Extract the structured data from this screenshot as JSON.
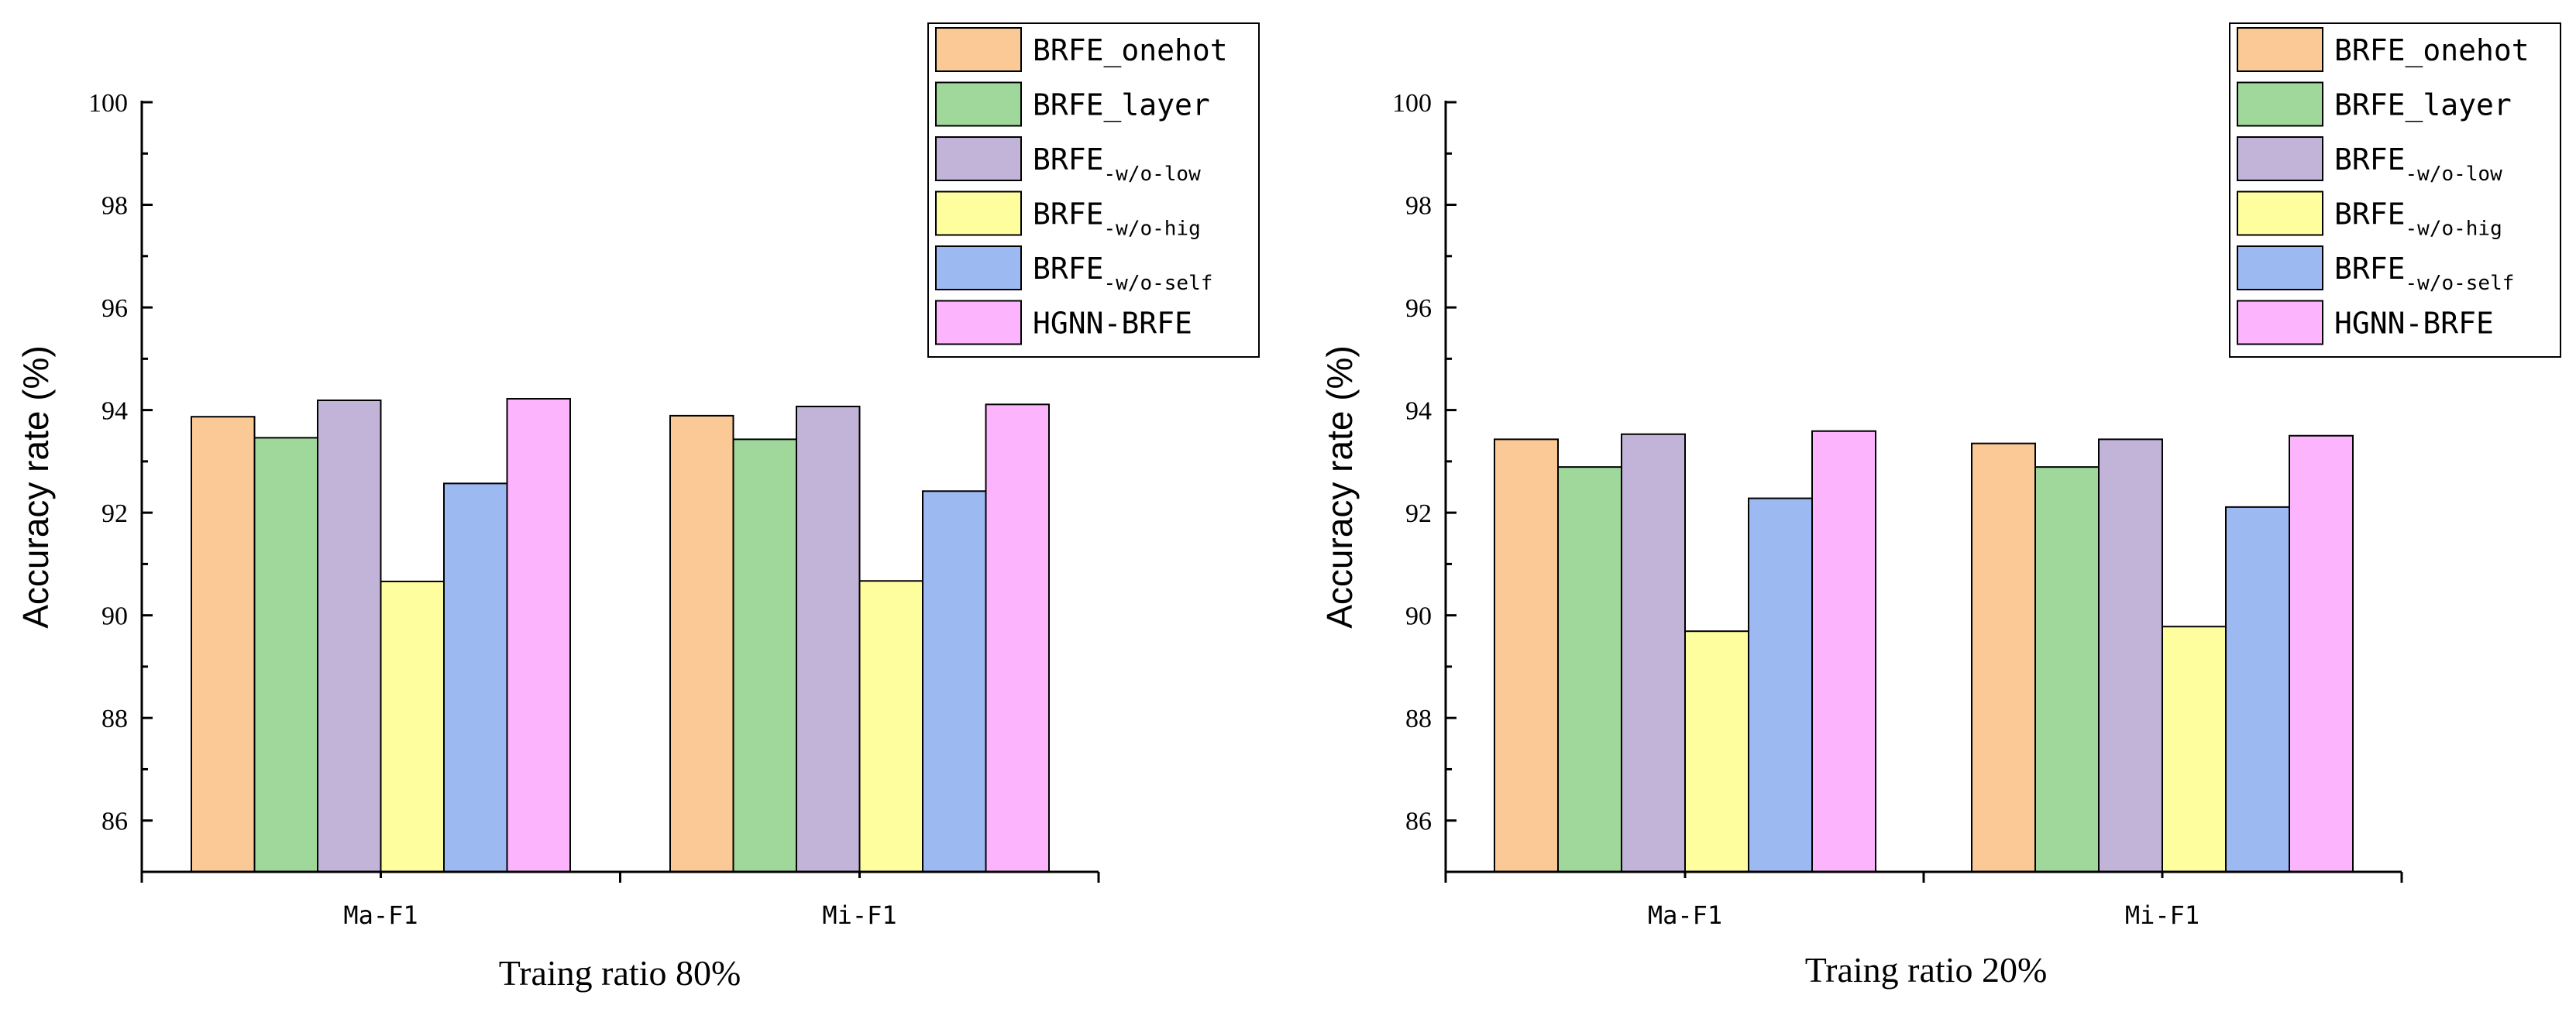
{
  "colors": {
    "BRFE_onehot": "#FAC996",
    "BRFE_layer": "#9FD89A",
    "BRFE_w/o-low": "#C2B4D8",
    "BRFE_w/o-hig": "#FEFE9E",
    "BRFE_w/o-self": "#9DB9F1",
    "HGNN-BRFE": "#FCB4FC"
  },
  "chart_data": [
    {
      "type": "bar",
      "title": "",
      "xlabel": "Traing ratio 80%",
      "ylabel": "Accuracy rate (%)",
      "ylim": [
        85,
        100
      ],
      "yticks": [
        "86",
        "88",
        "90",
        "92",
        "94",
        "96",
        "98",
        "100"
      ],
      "categories": [
        "Ma-F1",
        "Mi-F1"
      ],
      "legend_position": "top-right",
      "series": [
        {
          "name": "BRFE_onehot",
          "legend_main": "BRFE_onehot",
          "legend_sub": "",
          "values": [
            93.87,
            93.89
          ]
        },
        {
          "name": "BRFE_layer",
          "legend_main": "BRFE_layer",
          "legend_sub": "",
          "values": [
            93.46,
            93.43
          ]
        },
        {
          "name": "BRFE_w/o-low",
          "legend_main": "BRFE",
          "legend_sub": "-w/o-low",
          "values": [
            94.19,
            94.07
          ]
        },
        {
          "name": "BRFE_w/o-hig",
          "legend_main": "BRFE",
          "legend_sub": "-w/o-hig",
          "values": [
            90.66,
            90.67
          ]
        },
        {
          "name": "BRFE_w/o-self",
          "legend_main": "BRFE",
          "legend_sub": "-w/o-self",
          "values": [
            92.57,
            92.42
          ]
        },
        {
          "name": "HGNN-BRFE",
          "legend_main": "HGNN-BRFE",
          "legend_sub": "",
          "values": [
            94.22,
            94.11
          ]
        }
      ]
    },
    {
      "type": "bar",
      "title": "",
      "xlabel": "Traing ratio 20%",
      "ylabel": "Accuracy rate (%)",
      "ylim": [
        85,
        100
      ],
      "yticks": [
        "86",
        "88",
        "90",
        "92",
        "94",
        "96",
        "98",
        "100"
      ],
      "categories": [
        "Ma-F1",
        "Mi-F1"
      ],
      "legend_position": "top-right",
      "series": [
        {
          "name": "BRFE_onehot",
          "legend_main": "BRFE_onehot",
          "legend_sub": "",
          "values": [
            93.43,
            93.35
          ]
        },
        {
          "name": "BRFE_layer",
          "legend_main": "BRFE_layer",
          "legend_sub": "",
          "values": [
            92.89,
            92.89
          ]
        },
        {
          "name": "BRFE_w/o-low",
          "legend_main": "BRFE",
          "legend_sub": "-w/o-low",
          "values": [
            93.53,
            93.43
          ]
        },
        {
          "name": "BRFE_w/o-hig",
          "legend_main": "BRFE",
          "legend_sub": "-w/o-hig",
          "values": [
            89.69,
            89.78
          ]
        },
        {
          "name": "BRFE_w/o-self",
          "legend_main": "BRFE",
          "legend_sub": "-w/o-self",
          "values": [
            92.28,
            92.11
          ]
        },
        {
          "name": "HGNN-BRFE",
          "legend_main": "HGNN-BRFE",
          "legend_sub": "",
          "values": [
            93.59,
            93.5
          ]
        }
      ]
    }
  ]
}
